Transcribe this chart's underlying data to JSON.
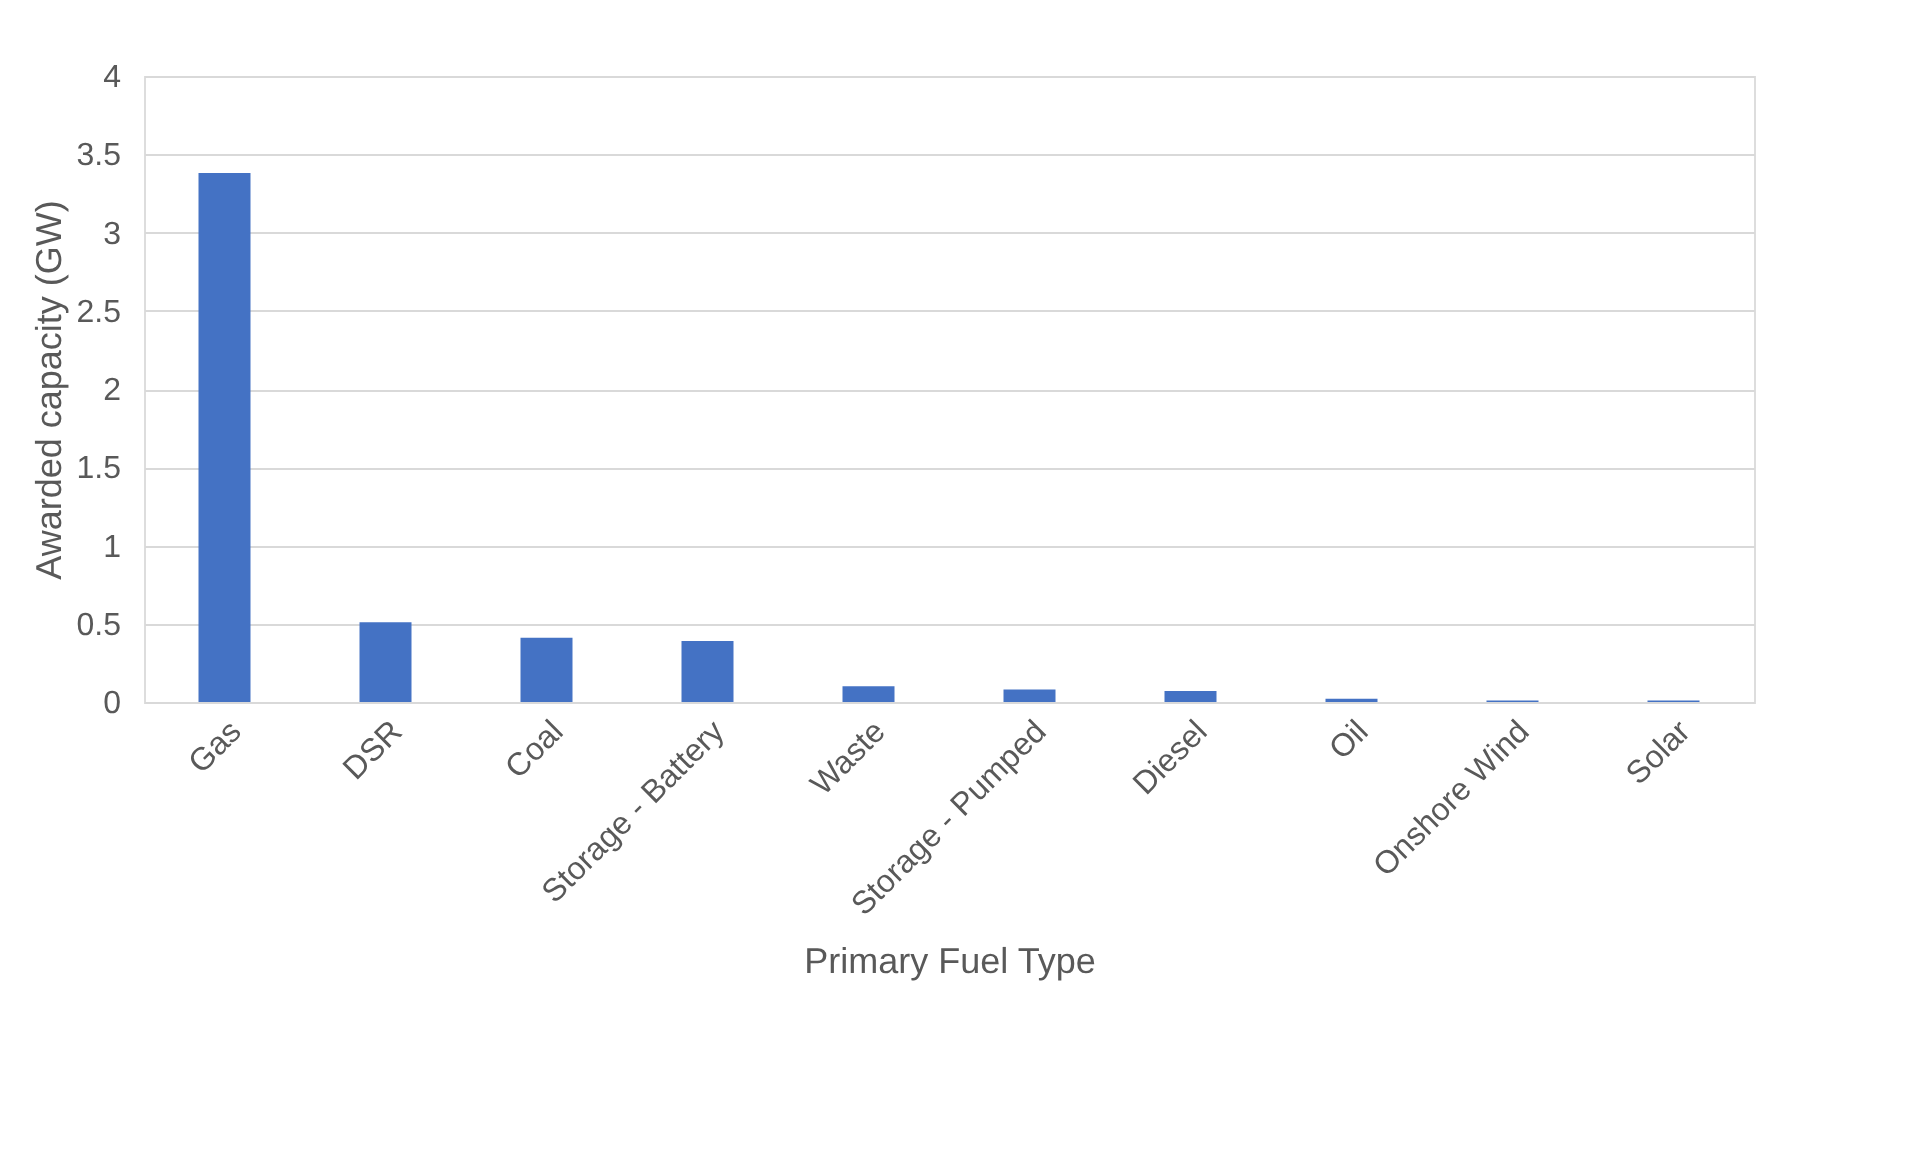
{
  "chart_data": {
    "type": "bar",
    "categories": [
      "Gas",
      "DSR",
      "Coal",
      "Storage - Battery",
      "Waste",
      "Storage - Pumped",
      "Diesel",
      "Oil",
      "Onshore Wind",
      "Solar"
    ],
    "values": [
      3.38,
      0.51,
      0.41,
      0.39,
      0.1,
      0.08,
      0.07,
      0.02,
      0.01,
      0.01
    ],
    "color": "#4472c4",
    "xlabel": "Primary Fuel Type",
    "ylabel": "Awarded capacity (GW)",
    "ylim": [
      0,
      4
    ],
    "yticks": [
      0,
      0.5,
      1,
      1.5,
      2,
      2.5,
      3,
      3.5,
      4
    ],
    "grid": "y"
  }
}
